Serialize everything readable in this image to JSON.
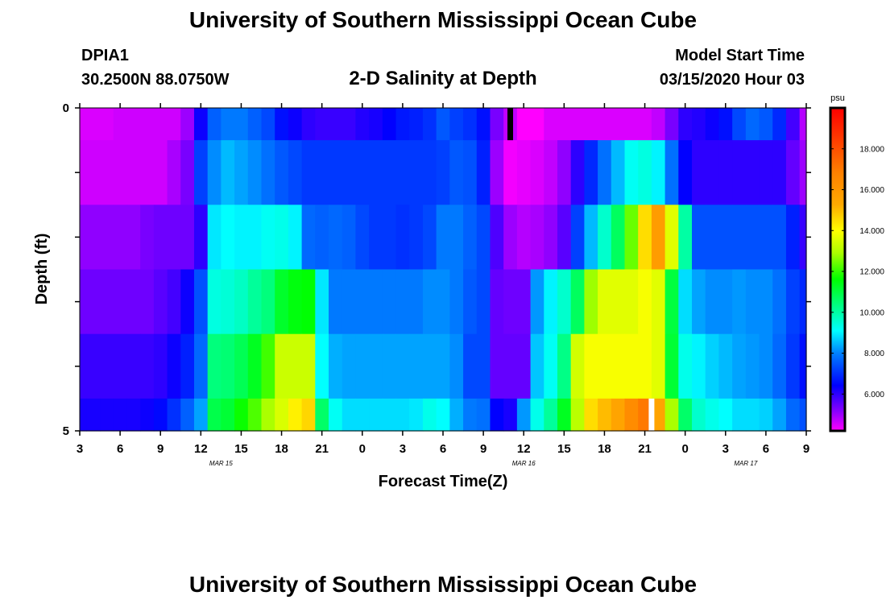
{
  "header": {
    "title": "University of Southern Mississippi Ocean Cube",
    "station_id": "DPIA1",
    "coords": "30.2500N 88.0750W",
    "subtitle": "2-D Salinity at Depth",
    "model_start_label": "Model Start Time",
    "model_start_value": "03/15/2020 Hour 03"
  },
  "footer": {
    "title": "University of Southern Mississippi Ocean Cube"
  },
  "chart_data": {
    "type": "heatmap",
    "title": "2-D Salinity at Depth",
    "xlabel": "Forecast Time(Z)",
    "ylabel": "Depth (ft)",
    "xlim_hours_from_start": [
      0,
      54
    ],
    "ylim": [
      0,
      5
    ],
    "x_ticks": [
      "3",
      "6",
      "9",
      "12",
      "15",
      "18",
      "21",
      "0",
      "3",
      "6",
      "9",
      "12",
      "15",
      "18",
      "21",
      "0",
      "3",
      "6",
      "9"
    ],
    "y_ticks": [
      "0",
      "5"
    ],
    "date_labels": [
      {
        "text": "MAR 15",
        "hour": 10.5
      },
      {
        "text": "MAR 16",
        "hour": 33
      },
      {
        "text": "MAR 17",
        "hour": 49.5
      }
    ],
    "colorbar": {
      "unit": "psu",
      "min": 4.2,
      "max": 20,
      "ticks": [
        "6.000",
        "8.000",
        "10.000",
        "12.000",
        "14.000",
        "16.000",
        "18.000"
      ]
    },
    "markers": [
      {
        "color": "#000000",
        "hour": 32,
        "layer": 0
      },
      {
        "color": "#ffffff",
        "hour": 42.5,
        "layer": 5
      }
    ],
    "time_hours": [
      0,
      1,
      2,
      3,
      4,
      5,
      6,
      7,
      8,
      9,
      10,
      11,
      12,
      13,
      14,
      15,
      16,
      17,
      18,
      19,
      20,
      21,
      22,
      23,
      24,
      25,
      26,
      27,
      28,
      29,
      30,
      31,
      32,
      33,
      34,
      35,
      36,
      37,
      38,
      39,
      40,
      41,
      42,
      43,
      44,
      45,
      46,
      47,
      48,
      49,
      50,
      51,
      52,
      53,
      54
    ],
    "depth_layers": [
      "0-0.5",
      "0.5-1.5",
      "1.5-2.5",
      "2.5-3.5",
      "3.5-4.5",
      "4.5-5"
    ],
    "salinity_psu": [
      [
        4.5,
        4.5,
        4.5,
        4.6,
        4.6,
        4.6,
        4.6,
        4.6,
        5.0,
        6.3,
        7.6,
        7.9,
        7.9,
        7.6,
        7.3,
        6.6,
        6.3,
        6.0,
        5.9,
        5.9,
        5.9,
        6.1,
        6.2,
        6.4,
        6.7,
        6.8,
        7.0,
        7.5,
        7.2,
        7.0,
        6.6,
        5.3,
        4.7,
        3.9,
        4.0,
        4.5,
        4.5,
        4.5,
        4.5,
        4.5,
        4.5,
        4.5,
        4.5,
        4.7,
        5.3,
        6.0,
        6.1,
        6.3,
        6.6,
        7.3,
        7.7,
        7.5,
        6.9,
        5.8,
        4.8
      ],
      [
        4.6,
        4.6,
        4.6,
        4.6,
        4.6,
        4.6,
        4.6,
        4.9,
        5.3,
        7.2,
        8.1,
        8.5,
        8.3,
        8.1,
        7.8,
        7.5,
        7.3,
        7.1,
        7.1,
        7.1,
        7.1,
        7.1,
        7.1,
        7.1,
        7.1,
        7.1,
        7.1,
        7.2,
        7.5,
        7.4,
        6.8,
        5.0,
        4.3,
        4.4,
        4.5,
        4.7,
        5.1,
        6.0,
        6.9,
        7.8,
        8.5,
        9.2,
        9.4,
        9.0,
        7.8,
        6.4,
        6.0,
        6.0,
        6.0,
        6.0,
        6.0,
        6.0,
        6.0,
        5.5,
        5.0
      ],
      [
        5.1,
        5.1,
        5.1,
        5.1,
        5.1,
        5.3,
        5.4,
        5.4,
        5.4,
        6.0,
        8.9,
        9.1,
        9.0,
        9.0,
        9.2,
        9.3,
        9.0,
        7.7,
        7.6,
        7.7,
        7.6,
        7.3,
        7.1,
        7.1,
        7.0,
        7.1,
        7.3,
        7.9,
        7.9,
        7.6,
        7.3,
        5.7,
        5.0,
        4.8,
        4.9,
        5.1,
        5.6,
        7.2,
        8.5,
        9.6,
        10.7,
        12.4,
        14.5,
        15.8,
        13.6,
        10.0,
        7.4,
        7.4,
        7.4,
        7.4,
        7.4,
        7.4,
        7.4,
        6.8,
        5.9
      ],
      [
        5.4,
        5.4,
        5.4,
        5.4,
        5.4,
        5.4,
        5.6,
        5.8,
        6.3,
        7.4,
        9.4,
        9.5,
        9.7,
        10.1,
        10.4,
        11.2,
        11.5,
        11.6,
        8.9,
        7.9,
        7.9,
        7.9,
        7.9,
        7.9,
        7.9,
        7.9,
        8.1,
        8.1,
        7.9,
        7.5,
        7.3,
        5.5,
        5.4,
        5.4,
        8.2,
        9.0,
        9.6,
        10.7,
        12.8,
        13.6,
        13.6,
        13.6,
        13.9,
        13.6,
        11.0,
        8.8,
        8.3,
        8.1,
        8.1,
        8.2,
        8.1,
        8.1,
        7.8,
        7.2,
        6.9
      ],
      [
        5.9,
        5.9,
        5.9,
        5.9,
        5.9,
        5.9,
        6.0,
        6.3,
        6.8,
        7.7,
        10.4,
        10.5,
        10.8,
        11.3,
        12.1,
        13.3,
        13.3,
        13.3,
        9.1,
        8.4,
        8.3,
        8.3,
        8.3,
        8.3,
        8.3,
        8.3,
        8.3,
        8.3,
        8.1,
        7.3,
        7.3,
        5.5,
        5.5,
        5.5,
        8.6,
        9.2,
        10.3,
        13.4,
        13.9,
        13.9,
        13.9,
        13.9,
        13.9,
        13.6,
        11.1,
        9.3,
        9.0,
        8.7,
        8.5,
        8.3,
        8.2,
        8.1,
        7.7,
        7.1,
        6.6
      ],
      [
        6.2,
        6.2,
        6.2,
        6.2,
        6.2,
        6.3,
        6.5,
        7.0,
        7.6,
        8.3,
        10.9,
        11.1,
        11.7,
        12.2,
        12.9,
        13.5,
        14.2,
        14.6,
        10.6,
        9.2,
        8.8,
        8.8,
        8.8,
        8.8,
        8.8,
        8.9,
        9.3,
        9.1,
        8.4,
        7.9,
        7.8,
        6.4,
        6.2,
        8.2,
        9.3,
        10.1,
        11.3,
        13.1,
        14.5,
        15.0,
        15.5,
        16.4,
        17.0,
        15.5,
        12.9,
        10.6,
        9.6,
        9.3,
        9.1,
        8.8,
        8.8,
        8.7,
        8.3,
        7.7,
        7.4
      ]
    ]
  }
}
